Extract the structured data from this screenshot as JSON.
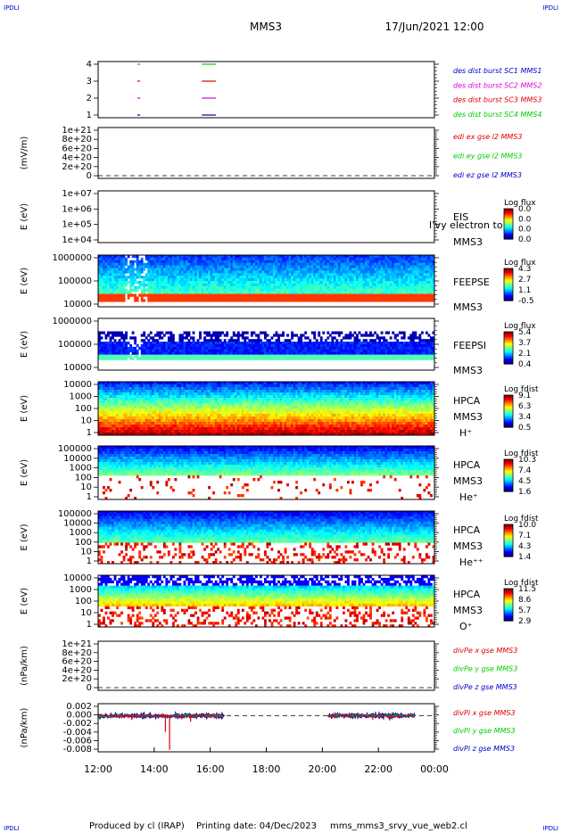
{
  "header": {
    "corner_left": "IPDLI",
    "corner_right": "IPDLI",
    "title": "MMS3",
    "datetime": "17/Jun/2021 12:00"
  },
  "footer": {
    "corner_left": "IPDLI",
    "corner_right": "IPDLI",
    "produced_by": "Produced by cl (IRAP)",
    "printing_date": "Printing date: 04/Dec/2023",
    "script_name": "mms_mms3_srvy_vue_web2.cl"
  },
  "colors": {
    "mms1": "#0000cc",
    "mms2": "#dd00dd",
    "mms3": "#dd0000",
    "mms4": "#00cc00",
    "axis": "#000000"
  },
  "chart_data": {
    "type": "multi-panel time series and spectrograms",
    "x_ticks": [
      "12:00",
      "14:00",
      "16:00",
      "18:00",
      "20:00",
      "22:00",
      "00:00"
    ],
    "x_range_hours": [
      12,
      24
    ],
    "panels": [
      {
        "id": "burst",
        "type": "line",
        "ylabel": "",
        "yticks": [
          "4",
          "3",
          "2",
          "1"
        ],
        "ylim": [
          0.5,
          4.5
        ],
        "legend": [
          {
            "text": "des dist burst SC1 MMS1",
            "color": "mms1"
          },
          {
            "text": "des dist burst SC2 MMS2",
            "color": "mms2"
          },
          {
            "text": "des dist burst SC3 MMS3",
            "color": "mms3"
          },
          {
            "text": "des dist burst SC4 MMS4",
            "color": "mms4"
          }
        ],
        "series": [
          {
            "name": "des dist burst SC4 MMS4",
            "y": 4,
            "segments": [
              [
                13.4,
                13.5
              ],
              [
                15.7,
                16.2
              ]
            ],
            "color": "mms4"
          },
          {
            "name": "des dist burst SC3 MMS3",
            "y": 3,
            "segments": [
              [
                13.4,
                13.5
              ],
              [
                15.7,
                16.2
              ]
            ],
            "color": "mms3"
          },
          {
            "name": "des dist burst SC2 MMS2",
            "y": 2,
            "segments": [
              [
                13.4,
                13.5
              ],
              [
                15.7,
                16.2
              ]
            ],
            "color": "mms2"
          },
          {
            "name": "des dist burst SC1 MMS1",
            "y": 1,
            "segments": [
              [
                13.4,
                13.5
              ],
              [
                15.7,
                16.2
              ]
            ],
            "color": "mms1"
          }
        ]
      },
      {
        "id": "edi",
        "type": "line",
        "ylabel": "(mV/m)",
        "yticks": [
          "1e+21",
          "8e+20",
          "6e+20",
          "4e+20",
          "2e+20",
          "0"
        ],
        "ylim": [
          0,
          1e+21
        ],
        "legend": [
          {
            "text": "edi ex gse l2 MMS3",
            "color": "mms3"
          },
          {
            "text": "edi ey gse l2 MMS3",
            "color": "mms4"
          },
          {
            "text": "edi ez gse l2 MMS3",
            "color": "mms1"
          }
        ]
      },
      {
        "id": "eis",
        "type": "heatmap",
        "ylabel": "E (eV)",
        "yticks": [
          "1e+07",
          "1e+06",
          "1e+05",
          "1e+04"
        ],
        "right_labels": [
          "EIS",
          "l’vy electron to",
          "MMS3"
        ],
        "colorbar_title": "Log flux",
        "colorbar_ticks": [
          "0.0",
          "0.0",
          "0.0",
          "0.0"
        ]
      },
      {
        "id": "feepse",
        "type": "heatmap",
        "ylabel": "E (eV)",
        "yticks": [
          "1000000",
          "100000",
          "10000"
        ],
        "right_labels": [
          "FEEPSE",
          "MMS3"
        ],
        "colorbar_title": "Log flux",
        "colorbar_ticks": [
          "4.3",
          "2.7",
          "1.1",
          "-0.5"
        ]
      },
      {
        "id": "feepsi",
        "type": "heatmap",
        "ylabel": "E (eV)",
        "yticks": [
          "1000000",
          "100000",
          "10000"
        ],
        "right_labels": [
          "FEEPSI",
          "MMS3"
        ],
        "colorbar_title": "Log flux",
        "colorbar_ticks": [
          "5.4",
          "3.7",
          "2.1",
          "0.4"
        ]
      },
      {
        "id": "hpca_h",
        "type": "heatmap",
        "ylabel": "E (eV)",
        "yticks": [
          "10000",
          "1000",
          "100",
          "10",
          "1"
        ],
        "right_labels": [
          "HPCA",
          "MMS3",
          "H⁺"
        ],
        "colorbar_title": "Log fdist",
        "colorbar_ticks": [
          "9.1",
          "6.3",
          "3.4",
          "0.5"
        ]
      },
      {
        "id": "hpca_he",
        "type": "heatmap",
        "ylabel": "E (eV)",
        "yticks": [
          "100000",
          "10000",
          "1000",
          "100",
          "10",
          "1"
        ],
        "right_labels": [
          "HPCA",
          "MMS3",
          "He⁺"
        ],
        "colorbar_title": "Log fdist",
        "colorbar_ticks": [
          "10.3",
          "7.4",
          "4.5",
          "1.6"
        ]
      },
      {
        "id": "hpca_hepp",
        "type": "heatmap",
        "ylabel": "E (eV)",
        "yticks": [
          "100000",
          "10000",
          "1000",
          "100",
          "10",
          "1"
        ],
        "right_labels": [
          "HPCA",
          "MMS3",
          "He⁺⁺"
        ],
        "colorbar_title": "Log fdist",
        "colorbar_ticks": [
          "10.0",
          "7.1",
          "4.3",
          "1.4"
        ]
      },
      {
        "id": "hpca_o",
        "type": "heatmap",
        "ylabel": "E (eV)",
        "yticks": [
          "10000",
          "1000",
          "100",
          "10",
          "1"
        ],
        "right_labels": [
          "HPCA",
          "MMS3",
          "O⁺"
        ],
        "colorbar_title": "Log fdist",
        "colorbar_ticks": [
          "11.5",
          "8.6",
          "5.7",
          "2.9"
        ]
      },
      {
        "id": "divpe",
        "type": "line",
        "ylabel": "(nPa/km)",
        "yticks": [
          "1e+21",
          "8e+20",
          "6e+20",
          "4e+20",
          "2e+20",
          "0"
        ],
        "ylim": [
          0,
          1e+21
        ],
        "legend": [
          {
            "text": "divPe x gse MMS3",
            "color": "mms3"
          },
          {
            "text": "divPe y gse MMS3",
            "color": "mms4"
          },
          {
            "text": "divPe z gse MMS3",
            "color": "mms1"
          }
        ]
      },
      {
        "id": "divpi",
        "type": "line",
        "ylabel": "(nPa/km)",
        "yticks": [
          "0.002",
          "0.000",
          "-0.002",
          "-0.004",
          "-0.006",
          "-0.008"
        ],
        "ylim": [
          -0.009,
          0.003
        ],
        "legend": [
          {
            "text": "divPi x gse MMS3",
            "color": "mms3"
          },
          {
            "text": "divPi y gse MMS3",
            "color": "mms4"
          },
          {
            "text": "divPi z gse MMS3",
            "color": "mms1"
          }
        ],
        "data_segments_hours": [
          [
            12.0,
            16.5
          ],
          [
            20.2,
            23.3
          ]
        ],
        "notable_dips": [
          {
            "x": 14.55,
            "y": -0.0085
          },
          {
            "x": 14.4,
            "y": -0.004
          },
          {
            "x": 13.2,
            "y": -0.001
          },
          {
            "x": 15.3,
            "y": -0.0015
          },
          {
            "x": 21.8,
            "y": -0.001
          },
          {
            "x": 22.4,
            "y": -0.0012
          }
        ]
      }
    ]
  }
}
